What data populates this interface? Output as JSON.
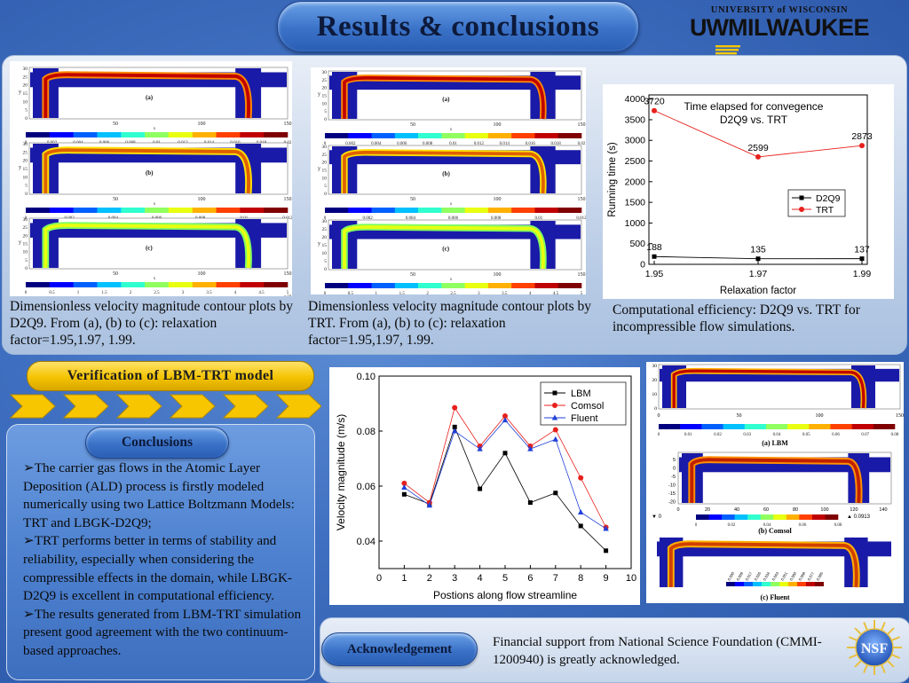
{
  "title": "Results & conclusions",
  "logo": {
    "line1": "UNIVERSITY of WISCONSIN",
    "line2_a": "UW",
    "line2_b": "MILWAUKEE"
  },
  "top": {
    "caption_d2q9": "Dimensionless velocity magnitude contour plots by D2Q9. From (a), (b) to (c): relaxation factor=1.95,1.97, 1.99.",
    "caption_trt": "Dimensionless velocity magnitude contour plots by TRT. From (a), (b) to (c): relaxation factor=1.95,1.97, 1.99.",
    "caption_eff": "Computational efficiency: D2Q9 vs. TRT for incompressible flow simulations.",
    "panel_labels": [
      "(a)",
      "(b)",
      "(c)"
    ],
    "y_axis": "y",
    "x_axis": "x",
    "x_ticks": [
      "50",
      "100",
      "150"
    ],
    "y_ticks": [
      "30",
      "25",
      "20",
      "15",
      "10",
      "5",
      "0"
    ],
    "scale_a": [
      "0",
      "0.002",
      "0.004",
      "0.006",
      "0.008",
      "0.01",
      "0.012",
      "0.014",
      "0.016",
      "0.018",
      "0.02"
    ],
    "scale_b": [
      "0",
      "0.002",
      "0.004",
      "0.006",
      "0.008",
      "0.01",
      "0.012"
    ],
    "scale_c": [
      "0",
      "0.5",
      "1",
      "1.5",
      "2",
      "2.5",
      "3",
      "3.5",
      "4",
      "4.5",
      "5"
    ],
    "scale_c_exp": "x 10",
    "trt_scale_a": [
      "0",
      "0.002",
      "0.004",
      "0.006",
      "0.008",
      "0.01",
      "0.012",
      "0.014",
      "0.016",
      "0.018",
      "0.02"
    ],
    "trt_scale_b": [
      "0",
      "0.002",
      "0.004",
      "0.006",
      "0.008",
      "0.01",
      "0.012"
    ],
    "trt_scale_c": [
      "0",
      "0.5",
      "1",
      "1.5",
      "2",
      "2.5",
      "3",
      "3.5",
      "4",
      "4.5",
      "5"
    ]
  },
  "verification": {
    "banner": "Verification of LBM-TRT model"
  },
  "conclusions": {
    "heading": "Conclusions",
    "items": [
      "➢The carrier gas flows in the Atomic Layer Deposition (ALD) process is firstly modeled numerically using two Lattice Boltzmann Models: TRT and LBGK-D2Q9;",
      "➢TRT performs better in terms of stability and reliability, especially when considering the compressible effects in the domain, while LBGK-D2Q9 is excellent in computational efficiency.",
      "➢The results generated from LBM-TRT simulation present good agreement with the two continuum-based approaches."
    ]
  },
  "comparison": {
    "panel_labels": [
      "(a) LBM",
      "(b) Comsol",
      "(c) Fluent"
    ],
    "lbm_scale": [
      "0",
      "0.01",
      "0.02",
      "0.03",
      "0.04",
      "0.05",
      "0.06",
      "0.07",
      "0.08"
    ],
    "lbm_x_ticks": [
      "0",
      "50",
      "100",
      "150"
    ],
    "lbm_y_ticks": [
      "30",
      "20",
      "10",
      "0"
    ],
    "comsol_x_ticks": [
      "0",
      "20",
      "40",
      "60",
      "80",
      "100",
      "120",
      "140"
    ],
    "comsol_y_ticks": [
      "5",
      "0",
      "-5",
      "-10",
      "-15",
      "-20"
    ],
    "comsol_scale": [
      "0",
      "0.02",
      "0.04",
      "0.06",
      "0.08"
    ],
    "comsol_min": "▼ 0",
    "comsol_max": "▲ 0.0913",
    "fluent_scale": [
      "0.000",
      "0.009",
      "0.017",
      "0.026",
      "0.034",
      "0.043",
      "0.051",
      "0.060",
      "0.068",
      "0.077",
      "0.085"
    ]
  },
  "acknowledgement": {
    "heading": "Acknowledgement",
    "text": "Financial support from National Science Foundation (CMMI-1200940) is greatly acknowledged.",
    "logo": "NSF"
  },
  "chart_data": [
    {
      "type": "line",
      "title": "Time elapsed for convegence\nD2Q9 vs. TRT",
      "xlabel": "Relaxation factor",
      "ylabel": "Running time (s)",
      "x": [
        1.95,
        1.97,
        1.99
      ],
      "xticks": [
        "1.95",
        "1.97",
        "1.99"
      ],
      "ylim": [
        0,
        4100
      ],
      "yticks": [
        0,
        500,
        1000,
        1500,
        2000,
        2500,
        3000,
        3500,
        4000
      ],
      "legend_position": "right",
      "series": [
        {
          "name": "D2Q9",
          "values": [
            188,
            135,
            137
          ],
          "color": "#000000",
          "marker": "square"
        },
        {
          "name": "TRT",
          "values": [
            3720,
            2599,
            2873
          ],
          "color": "#e8201c",
          "marker": "circle"
        }
      ],
      "data_labels": [
        "3720",
        "2599",
        "2873",
        "188",
        "135",
        "137"
      ]
    },
    {
      "type": "line",
      "title": "",
      "xlabel": "Postions along flow streamline",
      "ylabel": "Velocity magnitude (m/s)",
      "x": [
        1,
        2,
        3,
        4,
        5,
        6,
        7,
        8,
        9
      ],
      "xlim": [
        0,
        10
      ],
      "ylim": [
        0.03,
        0.1
      ],
      "yticks": [
        "0.04",
        "0.06",
        "0.08",
        "0.10"
      ],
      "xticks": [
        "0",
        "1",
        "2",
        "3",
        "4",
        "5",
        "6",
        "7",
        "8",
        "9",
        "10"
      ],
      "legend_position": "top-right",
      "series": [
        {
          "name": "LBM",
          "values": [
            0.057,
            0.0535,
            0.0815,
            0.059,
            0.072,
            0.054,
            0.0575,
            0.0455,
            0.0365
          ],
          "color": "#000000",
          "marker": "square"
        },
        {
          "name": "Comsol",
          "values": [
            0.061,
            0.054,
            0.0885,
            0.0745,
            0.0855,
            0.0745,
            0.0805,
            0.063,
            0.045
          ],
          "color": "#e8201c",
          "marker": "circle"
        },
        {
          "name": "Fluent",
          "values": [
            0.0595,
            0.053,
            0.08,
            0.0735,
            0.084,
            0.0735,
            0.077,
            0.0505,
            0.0445
          ],
          "color": "#1f3fd8",
          "marker": "triangle"
        }
      ]
    }
  ]
}
